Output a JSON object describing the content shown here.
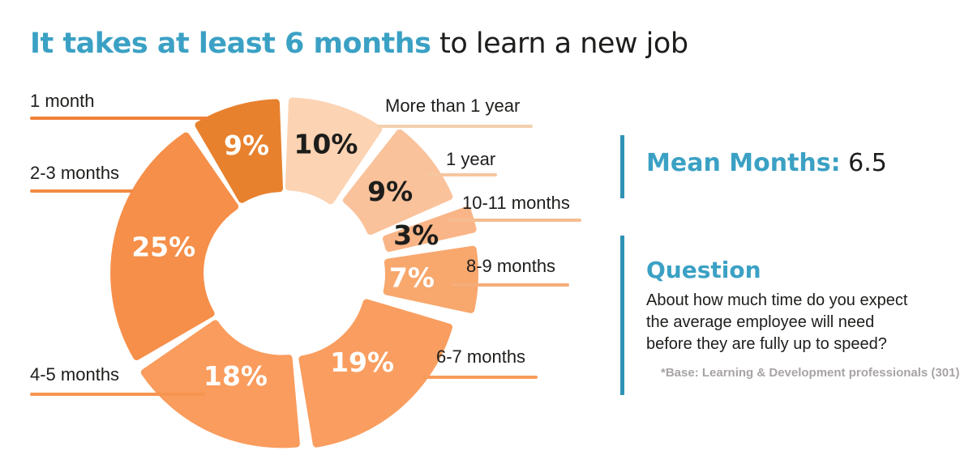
{
  "title": {
    "highlight": "It takes at least 6 months",
    "rest": " to learn a new job",
    "highlight_color": "#3ba1c4"
  },
  "chart_data": {
    "type": "pie",
    "subtype": "donut",
    "title": "It takes at least 6 months to learn a new job",
    "unit": "%",
    "order": "clockwise from 12 o'clock",
    "legend_position": "callout labels around donut",
    "segments": [
      {
        "label": "More than 1 year",
        "value": 10,
        "color": "#fcd3b3",
        "percent_text_color": "#1d1d1b",
        "line_color": "#f3d0ae",
        "explode": 8
      },
      {
        "label": "1 year",
        "value": 9,
        "color": "#fac29b",
        "percent_text_color": "#1d1d1b",
        "line_color": "#f6c69e",
        "explode": 20
      },
      {
        "label": "10-11 months",
        "value": 3,
        "color": "#f9b587",
        "percent_text_color": "#1d1d1b",
        "line_color": "#f5bd90",
        "explode": 34
      },
      {
        "label": "8-9 months",
        "value": 7,
        "color": "#f8a76d",
        "percent_text_color": "#ffffff",
        "line_color": "#f6ad79",
        "explode": 30
      },
      {
        "label": "6-7 months",
        "value": 19,
        "color": "#f99e60",
        "percent_text_color": "#ffffff",
        "line_color": "#f89c5b",
        "explode": 10
      },
      {
        "label": "4-5 months",
        "value": 18,
        "color": "#f99c5d",
        "percent_text_color": "#ffffff",
        "line_color": "#f69550",
        "explode": 6
      },
      {
        "label": "2-3 months",
        "value": 25,
        "color": "#f68f49",
        "percent_text_color": "#ffffff",
        "line_color": "#f18a44",
        "explode": 4
      },
      {
        "label": "1 month",
        "value": 9,
        "color": "#e8812e",
        "percent_text_color": "#ffffff",
        "line_color": "#ef8137",
        "explode": 6
      }
    ]
  },
  "stats": {
    "mean_label": "Mean Months:",
    "mean_value": "6.5"
  },
  "question": {
    "heading": "Question",
    "body": "About how much time do you expect\nthe average employee will need\nbefore they are fully up to speed?",
    "footnote": "*Base: Learning & Development professionals (301)"
  },
  "colors": {
    "accent_blue": "#3ba1c4",
    "bar_blue": "#2e93b5",
    "text_dark": "#1d1d1b",
    "footnote_gray": "#a8a4a4",
    "background": "#ffffff"
  }
}
